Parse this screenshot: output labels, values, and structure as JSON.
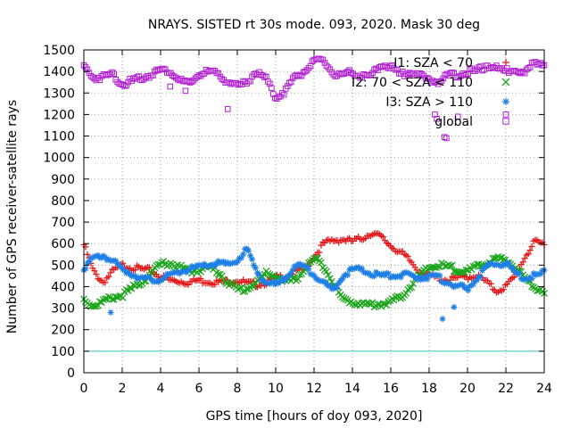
{
  "chart_data": {
    "type": "scatter",
    "title": "NRAYS. SISTED rt 30s mode. 093, 2020. Mask 30 deg",
    "xlabel": "GPS time [hours of doy 093, 2020]",
    "ylabel": "Number of GPS receiver-satellite rays",
    "xlim": [
      0,
      24
    ],
    "ylim": [
      0,
      1500
    ],
    "x_ticks": [
      0,
      2,
      4,
      6,
      8,
      10,
      12,
      14,
      16,
      18,
      20,
      22,
      24
    ],
    "y_ticks": [
      0,
      100,
      200,
      300,
      400,
      500,
      600,
      700,
      800,
      900,
      1000,
      1100,
      1200,
      1300,
      1400,
      1500
    ],
    "grid": true,
    "reference_line": {
      "y": 100,
      "color": "#33cccc"
    },
    "legend_position": "top-right",
    "series": [
      {
        "name": "I1: SZA < 70",
        "color": "#e5191a",
        "marker": "plus",
        "x": [
          0,
          0.5,
          1,
          1.5,
          2,
          2.5,
          3,
          3.5,
          4,
          4.5,
          5,
          5.5,
          6,
          6.5,
          7,
          7.5,
          8,
          8.5,
          9,
          9.5,
          10,
          10.5,
          11,
          11.5,
          12,
          12.5,
          13,
          13.5,
          14,
          14.5,
          15,
          15.5,
          16,
          16.5,
          17,
          17.5,
          18,
          18.5,
          19,
          19.5,
          20,
          20.5,
          21,
          21.5,
          22,
          22.5,
          23,
          23.5,
          24
        ],
        "values": [
          595,
          470,
          420,
          470,
          500,
          490,
          480,
          475,
          445,
          430,
          425,
          420,
          430,
          425,
          420,
          425,
          430,
          415,
          410,
          420,
          440,
          450,
          470,
          480,
          540,
          600,
          615,
          620,
          610,
          625,
          650,
          630,
          590,
          560,
          520,
          470,
          450,
          440,
          430,
          440,
          445,
          450,
          420,
          380,
          400,
          450,
          540,
          605,
          600
        ]
      },
      {
        "name": "I2: 70 < SZA < 110",
        "color": "#1aa51a",
        "marker": "cross",
        "x": [
          0,
          0.5,
          1,
          1.5,
          2,
          2.5,
          3,
          3.5,
          4,
          4.5,
          5,
          5.5,
          6,
          6.5,
          7,
          7.5,
          8,
          8.5,
          9,
          9.5,
          10,
          10.5,
          11,
          11.5,
          12,
          12.5,
          13,
          13.5,
          14,
          14.5,
          15,
          15.5,
          16,
          16.5,
          17,
          17.5,
          18,
          18.5,
          19,
          19.5,
          20,
          20.5,
          21,
          21.5,
          22,
          22.5,
          23,
          23.5,
          24
        ],
        "values": [
          340,
          310,
          330,
          350,
          360,
          390,
          420,
          460,
          505,
          510,
          490,
          470,
          480,
          490,
          470,
          420,
          385,
          390,
          420,
          460,
          450,
          420,
          430,
          480,
          530,
          500,
          420,
          340,
          330,
          320,
          315,
          320,
          330,
          350,
          400,
          450,
          490,
          500,
          490,
          480,
          470,
          490,
          510,
          530,
          520,
          490,
          440,
          400,
          380
        ]
      },
      {
        "name": "I3: SZA > 110",
        "color": "#1e7fe5",
        "marker": "star",
        "x": [
          0,
          0.5,
          1,
          1.5,
          2,
          2.5,
          3,
          3.5,
          4,
          4.5,
          5,
          5.5,
          6,
          6.5,
          7,
          7.5,
          8,
          8.5,
          9,
          9.5,
          10,
          10.5,
          11,
          11.5,
          12,
          12.5,
          13,
          13.5,
          14,
          14.5,
          15,
          15.5,
          16,
          16.5,
          17,
          17.5,
          18,
          18.5,
          19,
          19.5,
          20,
          20.5,
          21,
          21.5,
          22,
          22.5,
          23,
          23.5,
          24
        ],
        "values": [
          490,
          530,
          545,
          520,
          480,
          460,
          440,
          430,
          435,
          450,
          470,
          480,
          490,
          500,
          510,
          500,
          520,
          575,
          470,
          420,
          405,
          440,
          500,
          490,
          460,
          420,
          380,
          450,
          480,
          475,
          460,
          450,
          450,
          455,
          450,
          445,
          450,
          440,
          420,
          400,
          390,
          440,
          490,
          505,
          510,
          460,
          440,
          450,
          465
        ],
        "outliers": [
          [
            1.4,
            280
          ],
          [
            18.7,
            250
          ],
          [
            19.3,
            305
          ]
        ]
      },
      {
        "name": "global",
        "color": "#b01fd2",
        "marker": "square",
        "x": [
          0,
          0.5,
          1,
          1.5,
          2,
          2.5,
          3,
          3.5,
          4,
          4.5,
          5,
          5.5,
          6,
          6.5,
          7,
          7.5,
          8,
          8.5,
          9,
          9.5,
          10,
          10.5,
          11,
          11.5,
          12,
          12.5,
          13,
          13.5,
          14,
          14.5,
          15,
          15.5,
          16,
          16.5,
          17,
          17.5,
          18,
          18.5,
          19,
          19.5,
          20,
          20.5,
          21,
          21.5,
          22,
          22.5,
          23,
          23.5,
          24
        ],
        "values": [
          1425,
          1370,
          1375,
          1390,
          1340,
          1355,
          1370,
          1385,
          1410,
          1400,
          1360,
          1340,
          1385,
          1400,
          1385,
          1355,
          1330,
          1350,
          1400,
          1365,
          1280,
          1310,
          1375,
          1400,
          1445,
          1450,
          1390,
          1375,
          1400,
          1375,
          1380,
          1435,
          1420,
          1385,
          1400,
          1380,
          1360,
          1355,
          1380,
          1385,
          1400,
          1400,
          1430,
          1415,
          1400,
          1415,
          1390,
          1445,
          1440
        ],
        "outliers": [
          [
            7.5,
            1225
          ],
          [
            4.5,
            1330
          ],
          [
            5.3,
            1310
          ],
          [
            18.3,
            1200
          ],
          [
            18.4,
            1180
          ],
          [
            18.8,
            1095
          ],
          [
            18.9,
            1090
          ],
          [
            19.5,
            1190
          ],
          [
            22,
            1200
          ]
        ]
      }
    ]
  }
}
